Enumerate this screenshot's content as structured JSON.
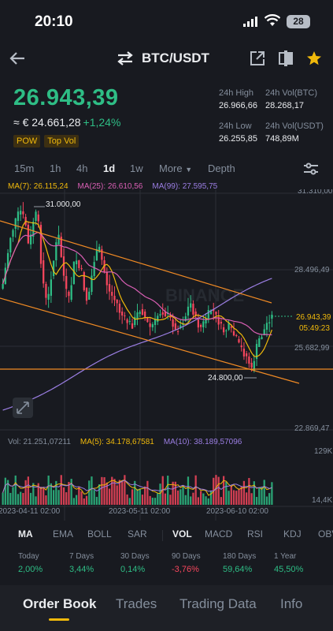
{
  "status": {
    "time": "20:10",
    "battery": "28"
  },
  "header": {
    "pair": "BTC/USDT"
  },
  "price": {
    "last": "26.943,39",
    "eur": "≈ € 24.661,28",
    "change": "+1,24%"
  },
  "tags": [
    "POW",
    "Top Vol"
  ],
  "stats": {
    "high_label": "24h High",
    "high": "26.966,66",
    "volbtc_label": "24h Vol(BTC)",
    "volbtc": "28.268,17",
    "low_label": "24h Low",
    "low": "26.255,85",
    "volusdt_label": "24h Vol(USDT)",
    "volusdt": "748,89M"
  },
  "timeframes": [
    "15m",
    "1h",
    "4h",
    "1d",
    "1w",
    "More",
    "Depth"
  ],
  "active_timeframe": "1d",
  "ma": {
    "ma7": "MA(7): 26.115,24",
    "ma25": "MA(25): 26.610,56",
    "ma99": "MA(99): 27.595,75"
  },
  "price_axis": [
    "31.310,00",
    "28.496,49",
    "25.682,99",
    "22.869,47"
  ],
  "price_tag": {
    "price": "26.943,39",
    "countdown": "05:49:23"
  },
  "high_mark": "31.000,00",
  "low_mark": "24.800,00",
  "volume": {
    "vol": "Vol: 21.251,07211",
    "ma5": "MA(5): 34.178,67581",
    "ma10": "MA(10): 38.189,57096"
  },
  "volume_axis": [
    "129K",
    "14,4K"
  ],
  "date_axis": [
    "2023-04-11 02:00",
    "2023-05-11 02:00",
    "2023-06-10 02:00"
  ],
  "indicators": [
    "MA",
    "EMA",
    "BOLL",
    "SAR",
    "VOL",
    "MACD",
    "RSI",
    "KDJ",
    "OBV"
  ],
  "performance": [
    {
      "label": "Today",
      "value": "2,00%",
      "color": "#2ebd85"
    },
    {
      "label": "7 Days",
      "value": "3,44%",
      "color": "#2ebd85"
    },
    {
      "label": "30 Days",
      "value": "0,14%",
      "color": "#2ebd85"
    },
    {
      "label": "90 Days",
      "value": "-3,76%",
      "color": "#f6465d"
    },
    {
      "label": "180 Days",
      "value": "59,64%",
      "color": "#2ebd85"
    },
    {
      "label": "1 Year",
      "value": "45,50%",
      "color": "#2ebd85"
    }
  ],
  "bottom_tabs": [
    "Order Book",
    "Trades",
    "Trading Data",
    "Info"
  ],
  "colors": {
    "up": "#2ebd85",
    "down": "#f6465d",
    "ma7": "#f0b90b",
    "ma25": "#d95fb4",
    "ma99": "#9b7ee3",
    "trend": "#f08a24",
    "accent": "#f0b90b"
  }
}
